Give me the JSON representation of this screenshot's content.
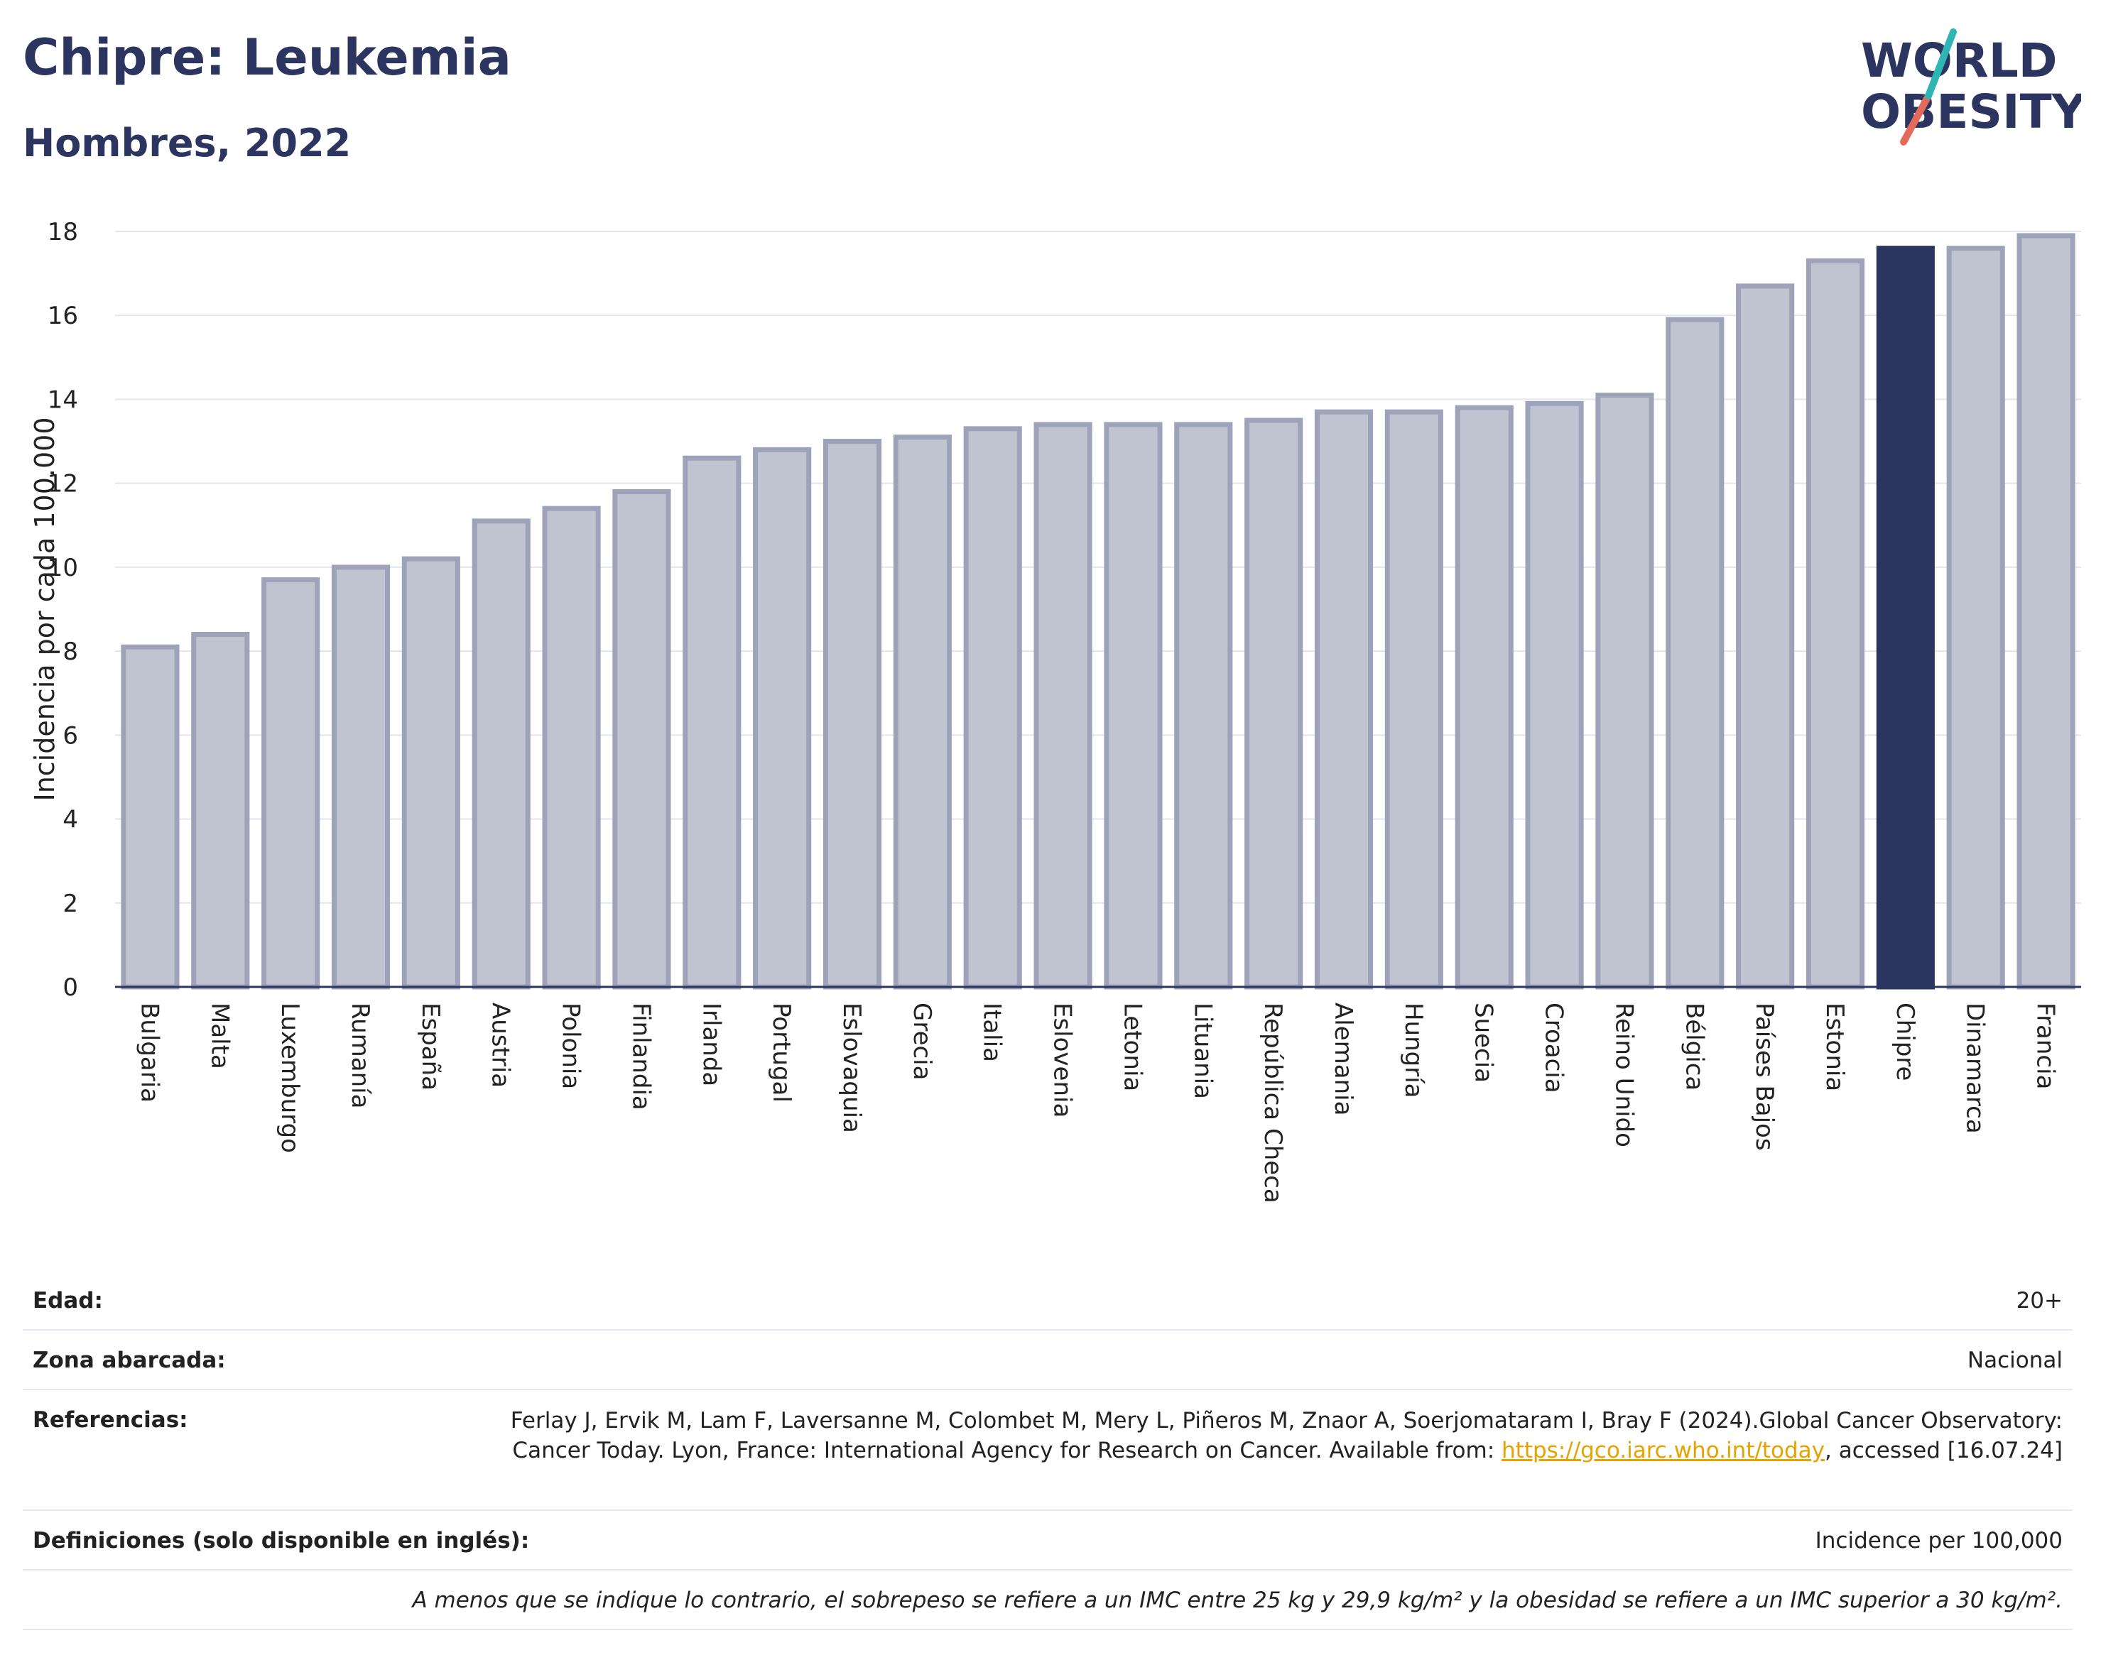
{
  "header": {
    "title": "Chipre: Leukemia",
    "subtitle": "Hombres, 2022",
    "logo_line1": "WORLD",
    "logo_line2": "OBESITY"
  },
  "chart_data": {
    "type": "bar",
    "title": "Chipre: Leukemia",
    "subtitle": "Hombres, 2022",
    "ylabel": "Incidencia por cada 100.000",
    "xlabel": "",
    "ylim": [
      0,
      18
    ],
    "yticks": [
      0,
      2,
      4,
      6,
      8,
      10,
      12,
      14,
      16,
      18
    ],
    "grid": true,
    "highlight": "Chipre",
    "colors": {
      "bar": "#c0c3d0",
      "bar_edge": "#9ea3ba",
      "highlight": "#2b3560"
    },
    "categories": [
      "Bulgaria",
      "Malta",
      "Luxemburgo",
      "Rumanía",
      "España",
      "Austria",
      "Polonia",
      "Finlandia",
      "Irlanda",
      "Portugal",
      "Eslovaquia",
      "Grecia",
      "Italia",
      "Eslovenia",
      "Letonia",
      "Lituania",
      "República Checa",
      "Alemania",
      "Hungría",
      "Suecia",
      "Croacia",
      "Reino Unido",
      "Bélgica",
      "Países Bajos",
      "Estonia",
      "Chipre",
      "Dinamarca",
      "Francia"
    ],
    "values": [
      8.1,
      8.4,
      9.7,
      10.0,
      10.2,
      11.1,
      11.4,
      11.8,
      12.6,
      12.8,
      13.0,
      13.1,
      13.3,
      13.4,
      13.4,
      13.4,
      13.5,
      13.7,
      13.7,
      13.8,
      13.9,
      14.1,
      15.9,
      16.7,
      17.3,
      17.6,
      17.6,
      17.9
    ]
  },
  "meta": {
    "age_label": "Edad:",
    "age_value": "20+",
    "area_label": "Zona abarcada:",
    "area_value": "Nacional",
    "ref_label": "Referencias:",
    "ref_text1": "Ferlay J, Ervik M, Lam F, Laversanne M, Colombet M, Mery L, Piñeros M, Znaor A, Soerjomataram I, Bray F (2024).Global Cancer Observatory: Cancer Today. Lyon, France: International Agency for Research on Cancer. Available from: ",
    "ref_link": "https://gco.iarc.who.int/today",
    "ref_text2": ", accessed [16.07.24]",
    "def_label": "Definiciones (solo disponible en inglés):",
    "def_value": "Incidence per 100,000",
    "footnote": "A menos que se indique lo contrario, el sobrepeso se refiere a un IMC entre 25 kg y 29,9 kg/m² y la obesidad se refiere a un IMC superior a 30 kg/m²."
  }
}
